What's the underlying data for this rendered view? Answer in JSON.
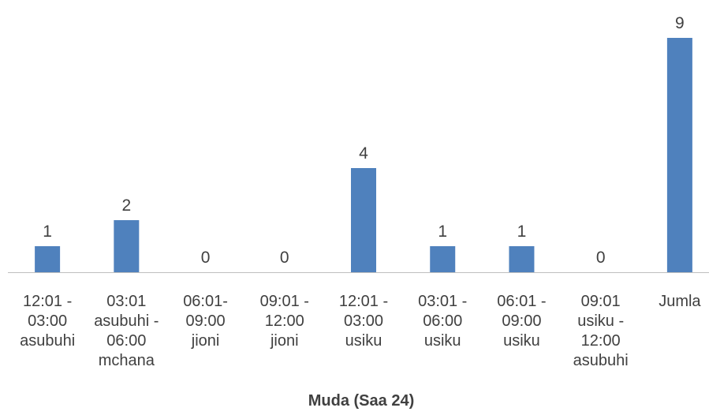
{
  "chart_data": {
    "type": "bar",
    "categories": [
      [
        "12:01 -",
        "03:00",
        "asubuhi"
      ],
      [
        "03:01",
        "asubuhi -",
        "06:00",
        "mchana"
      ],
      [
        "06:01-",
        "09:00",
        "jioni"
      ],
      [
        "09:01 -",
        "12:00",
        "jioni"
      ],
      [
        "12:01 -",
        "03:00",
        "usiku"
      ],
      [
        "03:01 -",
        "06:00",
        "usiku"
      ],
      [
        "06:01 -",
        "09:00",
        "usiku"
      ],
      [
        "09:01",
        "usiku -",
        "12:00",
        "asubuhi"
      ],
      [
        "Jumla"
      ]
    ],
    "values": [
      1,
      2,
      0,
      0,
      4,
      1,
      1,
      0,
      9
    ],
    "xlabel": "Muda (Saa 24)",
    "ylabel": "",
    "ylim": [
      0,
      9
    ],
    "grid": false,
    "legend": "none",
    "bar_color": "#4f81bd"
  }
}
